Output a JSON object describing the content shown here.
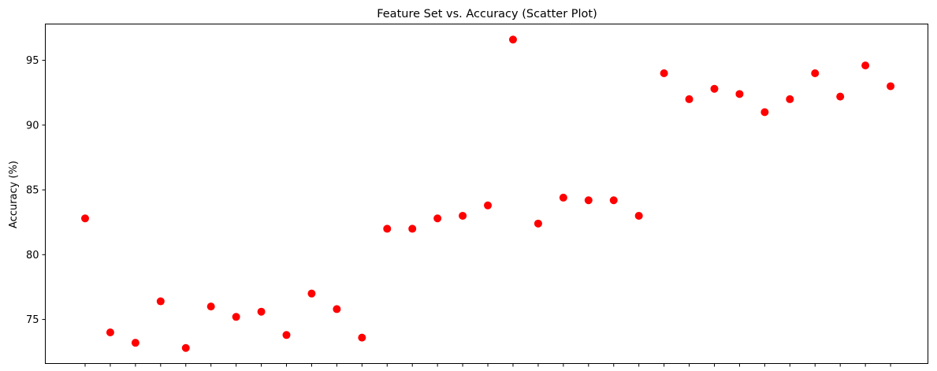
{
  "chart_data": {
    "type": "scatter",
    "title": "Feature Set vs. Accuracy (Scatter Plot)",
    "xlabel": "",
    "ylabel": "Accuracy (%)",
    "x_tick_labels_visible": false,
    "ylim": [
      71.6,
      97.8
    ],
    "y_ticks": [
      75,
      80,
      85,
      90,
      95
    ],
    "grid": false,
    "marker_color": "#ff0000",
    "series": [
      {
        "values": [
          82.8,
          74.0,
          73.2,
          76.4,
          72.8,
          76.0,
          75.2,
          75.6,
          73.8,
          77.0,
          75.8,
          73.6,
          82.0,
          82.0,
          82.8,
          83.0,
          83.8,
          96.6,
          82.4,
          84.4,
          84.2,
          84.2,
          83.0,
          94.0,
          92.0,
          92.8,
          92.4,
          91.0,
          92.0,
          94.0,
          92.2,
          94.6,
          93.0
        ]
      }
    ]
  }
}
